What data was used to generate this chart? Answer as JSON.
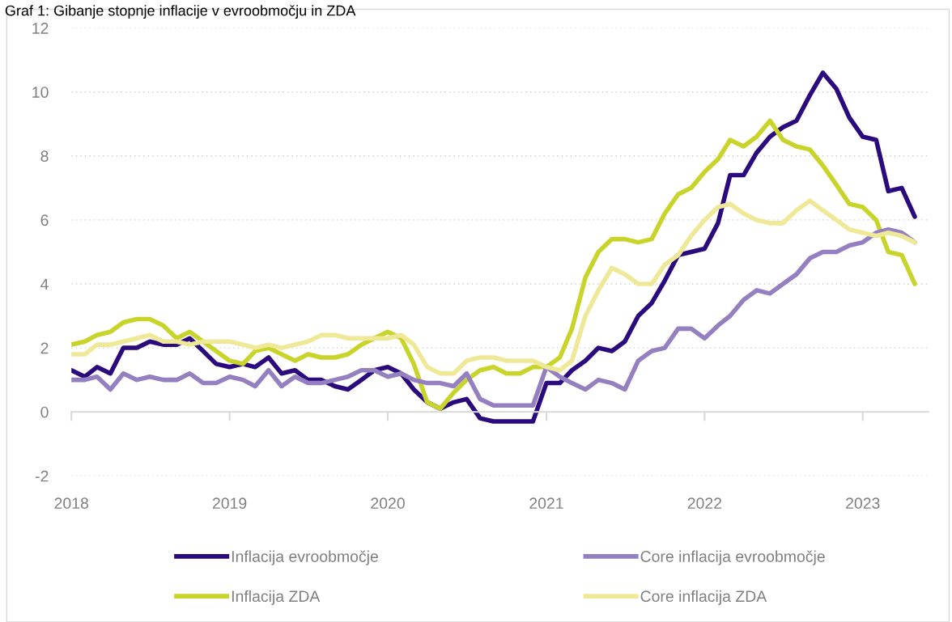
{
  "chart_data": {
    "type": "line",
    "title": "Graf 1: Gibanje stopnje inflacije v evroobmočju in ZDA",
    "x": [
      "2018-01",
      "2018-02",
      "2018-03",
      "2018-04",
      "2018-05",
      "2018-06",
      "2018-07",
      "2018-08",
      "2018-09",
      "2018-10",
      "2018-11",
      "2018-12",
      "2019-01",
      "2019-02",
      "2019-03",
      "2019-04",
      "2019-05",
      "2019-06",
      "2019-07",
      "2019-08",
      "2019-09",
      "2019-10",
      "2019-11",
      "2019-12",
      "2020-01",
      "2020-02",
      "2020-03",
      "2020-04",
      "2020-05",
      "2020-06",
      "2020-07",
      "2020-08",
      "2020-09",
      "2020-10",
      "2020-11",
      "2020-12",
      "2021-01",
      "2021-02",
      "2021-03",
      "2021-04",
      "2021-05",
      "2021-06",
      "2021-07",
      "2021-08",
      "2021-09",
      "2021-10",
      "2021-11",
      "2021-12",
      "2022-01",
      "2022-02",
      "2022-03",
      "2022-04",
      "2022-05",
      "2022-06",
      "2022-07",
      "2022-08",
      "2022-09",
      "2022-10",
      "2022-11",
      "2022-12",
      "2023-01",
      "2023-02",
      "2023-03",
      "2023-04",
      "2023-05"
    ],
    "series": [
      {
        "name": "Inflacija evroobmočje",
        "color": "#2b0a7d",
        "values": [
          1.3,
          1.1,
          1.4,
          1.2,
          2.0,
          2.0,
          2.2,
          2.1,
          2.1,
          2.3,
          1.9,
          1.5,
          1.4,
          1.5,
          1.4,
          1.7,
          1.2,
          1.3,
          1.0,
          1.0,
          0.8,
          0.7,
          1.0,
          1.3,
          1.4,
          1.2,
          0.7,
          0.3,
          0.1,
          0.3,
          0.4,
          -0.2,
          -0.3,
          -0.3,
          -0.3,
          -0.3,
          0.9,
          0.9,
          1.3,
          1.6,
          2.0,
          1.9,
          2.2,
          3.0,
          3.4,
          4.1,
          4.9,
          5.0,
          5.1,
          5.9,
          7.4,
          7.4,
          8.1,
          8.6,
          8.9,
          9.1,
          9.9,
          10.6,
          10.1,
          9.2,
          8.6,
          8.5,
          6.9,
          7.0,
          6.1
        ]
      },
      {
        "name": "Inflacija ZDA",
        "color": "#c9d42a",
        "values": [
          2.1,
          2.2,
          2.4,
          2.5,
          2.8,
          2.9,
          2.9,
          2.7,
          2.3,
          2.5,
          2.2,
          1.9,
          1.6,
          1.5,
          1.9,
          2.0,
          1.8,
          1.6,
          1.8,
          1.7,
          1.7,
          1.8,
          2.1,
          2.3,
          2.5,
          2.3,
          1.5,
          0.3,
          0.1,
          0.6,
          1.0,
          1.3,
          1.4,
          1.2,
          1.2,
          1.4,
          1.4,
          1.7,
          2.6,
          4.2,
          5.0,
          5.4,
          5.4,
          5.3,
          5.4,
          6.2,
          6.8,
          7.0,
          7.5,
          7.9,
          8.5,
          8.3,
          8.6,
          9.1,
          8.5,
          8.3,
          8.2,
          7.7,
          7.1,
          6.5,
          6.4,
          6.0,
          5.0,
          4.9,
          4.0
        ]
      },
      {
        "name": "Core inflacija evroobmočje",
        "color": "#9480c0",
        "values": [
          1.0,
          1.0,
          1.1,
          0.7,
          1.2,
          1.0,
          1.1,
          1.0,
          1.0,
          1.2,
          0.9,
          0.9,
          1.1,
          1.0,
          0.8,
          1.3,
          0.8,
          1.1,
          0.9,
          0.9,
          1.0,
          1.1,
          1.3,
          1.3,
          1.1,
          1.2,
          1.0,
          0.9,
          0.9,
          0.8,
          1.2,
          0.4,
          0.2,
          0.2,
          0.2,
          0.2,
          1.4,
          1.1,
          0.9,
          0.7,
          1.0,
          0.9,
          0.7,
          1.6,
          1.9,
          2.0,
          2.6,
          2.6,
          2.3,
          2.7,
          3.0,
          3.5,
          3.8,
          3.7,
          4.0,
          4.3,
          4.8,
          5.0,
          5.0,
          5.2,
          5.3,
          5.6,
          5.7,
          5.6,
          5.3
        ]
      },
      {
        "name": "Core inflacija ZDA",
        "color": "#eee897",
        "values": [
          1.8,
          1.8,
          2.1,
          2.1,
          2.2,
          2.3,
          2.4,
          2.2,
          2.2,
          2.1,
          2.2,
          2.2,
          2.2,
          2.1,
          2.0,
          2.1,
          2.0,
          2.1,
          2.2,
          2.4,
          2.4,
          2.3,
          2.3,
          2.3,
          2.3,
          2.4,
          2.1,
          1.4,
          1.2,
          1.2,
          1.6,
          1.7,
          1.7,
          1.6,
          1.6,
          1.6,
          1.4,
          1.3,
          1.6,
          3.0,
          3.8,
          4.5,
          4.3,
          4.0,
          4.0,
          4.6,
          4.9,
          5.5,
          6.0,
          6.4,
          6.5,
          6.2,
          6.0,
          5.9,
          5.9,
          6.3,
          6.6,
          6.3,
          6.0,
          5.7,
          5.6,
          5.5,
          5.6,
          5.5,
          5.3
        ]
      }
    ],
    "xlim": [
      "2018-01",
      "2023-06"
    ],
    "xticks": [
      {
        "value": "2018-01",
        "label": "2018"
      },
      {
        "value": "2019-01",
        "label": "2019"
      },
      {
        "value": "2020-01",
        "label": "2020"
      },
      {
        "value": "2021-01",
        "label": "2021"
      },
      {
        "value": "2022-01",
        "label": "2022"
      },
      {
        "value": "2023-01",
        "label": "2023"
      }
    ],
    "ylim": [
      -2,
      12
    ],
    "yticks": [
      -2,
      0,
      2,
      4,
      6,
      8,
      10,
      12
    ],
    "grid": "y",
    "legend": "bottom",
    "marker": "none",
    "line_style": "solid"
  }
}
